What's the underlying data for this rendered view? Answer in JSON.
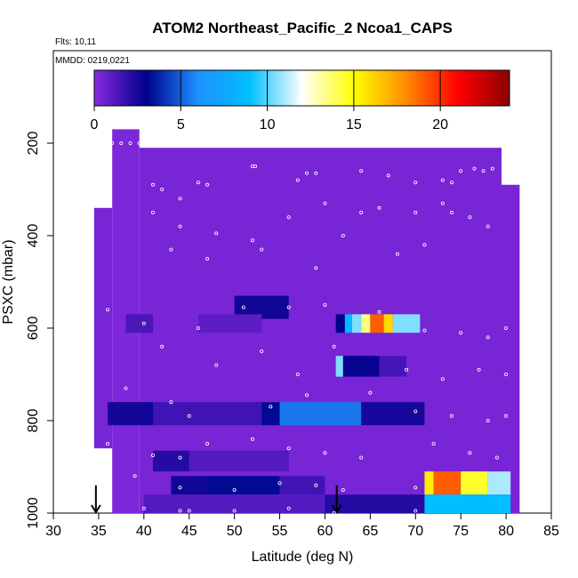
{
  "chart_data": {
    "type": "heatmap",
    "title": "ATOM2 Northeast_Pacific_2 Ncoa1_CAPS",
    "annotations": [
      "Flts: 10,11",
      "MMDD: 0219,0221"
    ],
    "xlabel": "Latitude (deg N)",
    "ylabel": "PSXC (mbar)",
    "xlim": [
      30,
      85
    ],
    "ylim": [
      1000,
      0
    ],
    "x_ticks": [
      "30",
      "35",
      "40",
      "45",
      "50",
      "55",
      "60",
      "65",
      "70",
      "75",
      "80",
      "85"
    ],
    "y_ticks": [
      "200",
      "400",
      "600",
      "800",
      "1000"
    ],
    "colorbar": {
      "min": 0,
      "max": 24,
      "ticks": [
        "0",
        "5",
        "10",
        "15",
        "20"
      ],
      "colors": [
        "#8a2be2",
        "#00008b",
        "#1e90ff",
        "#00bfff",
        "#ffffff",
        "#ffff00",
        "#ff8c00",
        "#ff0000",
        "#8b0000"
      ]
    },
    "background_value": 0.5,
    "cells": [
      {
        "lat": [
          36.5,
          39.5
        ],
        "p": [
          170,
          1000
        ],
        "v": 0.3
      },
      {
        "lat": [
          34.5,
          36.5
        ],
        "p": [
          340,
          860
        ],
        "v": 0.4
      },
      {
        "lat": [
          39.5,
          79.5
        ],
        "p": [
          210,
          1000
        ],
        "v": 0.4
      },
      {
        "lat": [
          79.5,
          81.5
        ],
        "p": [
          290,
          1000
        ],
        "v": 0.4
      },
      {
        "lat": [
          36,
          41
        ],
        "p": [
          760,
          810
        ],
        "v": 2.6
      },
      {
        "lat": [
          41,
          53
        ],
        "p": [
          760,
          810
        ],
        "v": 1.6
      },
      {
        "lat": [
          53,
          55
        ],
        "p": [
          760,
          810
        ],
        "v": 3.2
      },
      {
        "lat": [
          55,
          64
        ],
        "p": [
          760,
          810
        ],
        "v": 5.5
      },
      {
        "lat": [
          64,
          71
        ],
        "p": [
          760,
          810
        ],
        "v": 2.5
      },
      {
        "lat": [
          41,
          45
        ],
        "p": [
          865,
          910
        ],
        "v": 2.2
      },
      {
        "lat": [
          45,
          56
        ],
        "p": [
          865,
          910
        ],
        "v": 1.2
      },
      {
        "lat": [
          43,
          47
        ],
        "p": [
          920,
          960
        ],
        "v": 2.6
      },
      {
        "lat": [
          47,
          55
        ],
        "p": [
          920,
          960
        ],
        "v": 3.2
      },
      {
        "lat": [
          55,
          60
        ],
        "p": [
          920,
          960
        ],
        "v": 1.6
      },
      {
        "lat": [
          40,
          60
        ],
        "p": [
          960,
          1000
        ],
        "v": 1.2
      },
      {
        "lat": [
          60,
          71
        ],
        "p": [
          960,
          1000
        ],
        "v": 2.2
      },
      {
        "lat": [
          50,
          56
        ],
        "p": [
          530,
          580
        ],
        "v": 2.6
      },
      {
        "lat": [
          38,
          41
        ],
        "p": [
          570,
          610
        ],
        "v": 1.4
      },
      {
        "lat": [
          46,
          53
        ],
        "p": [
          570,
          610
        ],
        "v": 1.0
      },
      {
        "lat": [
          61.2,
          62.2
        ],
        "p": [
          570,
          610
        ],
        "v": 3.0
      },
      {
        "lat": [
          62.2,
          63
        ],
        "p": [
          570,
          610
        ],
        "v": 8.5
      },
      {
        "lat": [
          63,
          64
        ],
        "p": [
          570,
          610
        ],
        "v": 10.5
      },
      {
        "lat": [
          64,
          65
        ],
        "p": [
          570,
          610
        ],
        "v": 13.5
      },
      {
        "lat": [
          65,
          66.5
        ],
        "p": [
          570,
          610
        ],
        "v": 19.0
      },
      {
        "lat": [
          66.5,
          67.5
        ],
        "p": [
          570,
          610
        ],
        "v": 16.0
      },
      {
        "lat": [
          67.5,
          70.5
        ],
        "p": [
          570,
          610
        ],
        "v": 10.5
      },
      {
        "lat": [
          61.2,
          62
        ],
        "p": [
          660,
          705
        ],
        "v": 10.5
      },
      {
        "lat": [
          62,
          66
        ],
        "p": [
          660,
          705
        ],
        "v": 2.8
      },
      {
        "lat": [
          66,
          69
        ],
        "p": [
          660,
          705
        ],
        "v": 1.5
      },
      {
        "lat": [
          71,
          72
        ],
        "p": [
          910,
          960
        ],
        "v": 15.5
      },
      {
        "lat": [
          72,
          75
        ],
        "p": [
          910,
          960
        ],
        "v": 19.0
      },
      {
        "lat": [
          75,
          78
        ],
        "p": [
          910,
          960
        ],
        "v": 14.5
      },
      {
        "lat": [
          78,
          80.5
        ],
        "p": [
          910,
          960
        ],
        "v": 11.0
      },
      {
        "lat": [
          71,
          80.5
        ],
        "p": [
          960,
          1000
        ],
        "v": 9.0
      }
    ],
    "points": [
      [
        36.5,
        200
      ],
      [
        37.5,
        200
      ],
      [
        38.5,
        200
      ],
      [
        39.5,
        200
      ],
      [
        35.7,
        240
      ],
      [
        36,
        240
      ],
      [
        41,
        290
      ],
      [
        42,
        300
      ],
      [
        44,
        320
      ],
      [
        46,
        285
      ],
      [
        47,
        290
      ],
      [
        52,
        250
      ],
      [
        52.3,
        250
      ],
      [
        57,
        280
      ],
      [
        58,
        265
      ],
      [
        59,
        265
      ],
      [
        64,
        260
      ],
      [
        67,
        270
      ],
      [
        70,
        285
      ],
      [
        73,
        280
      ],
      [
        74,
        285
      ],
      [
        75,
        260
      ],
      [
        76.5,
        255
      ],
      [
        77.5,
        260
      ],
      [
        78.5,
        255
      ],
      [
        66,
        340
      ],
      [
        70,
        350
      ],
      [
        73,
        330
      ],
      [
        74,
        350
      ],
      [
        76,
        360
      ],
      [
        78,
        380
      ],
      [
        41,
        350
      ],
      [
        44,
        380
      ],
      [
        48,
        395
      ],
      [
        52,
        410
      ],
      [
        56,
        360
      ],
      [
        60,
        330
      ],
      [
        64,
        350
      ],
      [
        43,
        430
      ],
      [
        47,
        450
      ],
      [
        53,
        430
      ],
      [
        59,
        470
      ],
      [
        62,
        400
      ],
      [
        68,
        440
      ],
      [
        71,
        420
      ],
      [
        36,
        560
      ],
      [
        40,
        590
      ],
      [
        46,
        600
      ],
      [
        51,
        555
      ],
      [
        56,
        555
      ],
      [
        60,
        550
      ],
      [
        66,
        565
      ],
      [
        71,
        605
      ],
      [
        75,
        610
      ],
      [
        78,
        620
      ],
      [
        80,
        600
      ],
      [
        42,
        640
      ],
      [
        48,
        680
      ],
      [
        53,
        650
      ],
      [
        57,
        700
      ],
      [
        61,
        640
      ],
      [
        69,
        690
      ],
      [
        73,
        710
      ],
      [
        77,
        690
      ],
      [
        80,
        700
      ],
      [
        38,
        730
      ],
      [
        43,
        760
      ],
      [
        45,
        790
      ],
      [
        54,
        770
      ],
      [
        58,
        745
      ],
      [
        65,
        740
      ],
      [
        70,
        780
      ],
      [
        74,
        790
      ],
      [
        78,
        800
      ],
      [
        80,
        790
      ],
      [
        36,
        850
      ],
      [
        41,
        875
      ],
      [
        44,
        880
      ],
      [
        47,
        850
      ],
      [
        52,
        840
      ],
      [
        56,
        860
      ],
      [
        60,
        870
      ],
      [
        64,
        880
      ],
      [
        72,
        850
      ],
      [
        76,
        870
      ],
      [
        79,
        880
      ],
      [
        39,
        920
      ],
      [
        44,
        945
      ],
      [
        50,
        950
      ],
      [
        55,
        935
      ],
      [
        59,
        940
      ],
      [
        62,
        950
      ],
      [
        70,
        945
      ],
      [
        40,
        990
      ],
      [
        44,
        995
      ],
      [
        45,
        995
      ],
      [
        50,
        995
      ],
      [
        56,
        990
      ],
      [
        61,
        1000
      ],
      [
        70,
        995
      ]
    ],
    "arrows": [
      34.7,
      61.3
    ]
  }
}
